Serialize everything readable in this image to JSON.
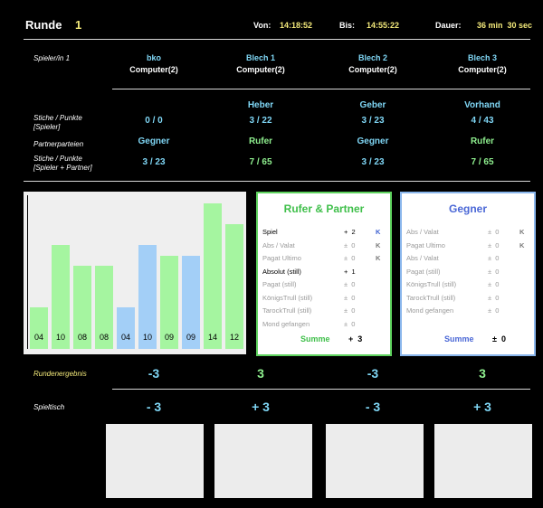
{
  "header": {
    "runde_label": "Runde",
    "runde_value": "1",
    "von_label": "Von:",
    "von_value": "14:18:52",
    "bis_label": "Bis:",
    "bis_value": "14:55:22",
    "dauer_label": "Dauer:",
    "dauer_value": "36 min  30 sec"
  },
  "labels": {
    "spieler": "Spieler/in 1",
    "stiche_spieler_1": "Stiche / Punkte",
    "stiche_spieler_2": "[Spieler]",
    "partnerparteien": "Partnerparteien",
    "stiche_partner_1": "Stiche / Punkte",
    "stiche_partner_2": "[Spieler + Partner]",
    "rundenergebnis": "Rundenergebnis",
    "spieltisch": "Spieltisch"
  },
  "players": [
    {
      "name": "bko",
      "type": "Computer(2)",
      "role": "",
      "stiche": "0 / 0",
      "partei": "Gegner",
      "partner_stiche": "3 / 23",
      "ergebnis": "-3",
      "tisch": "- 3"
    },
    {
      "name": "Blech 1",
      "type": "Computer(2)",
      "role": "Heber",
      "stiche": "3 / 22",
      "partei": "Rufer",
      "partner_stiche": "7 / 65",
      "ergebnis": "3",
      "tisch": "+ 3"
    },
    {
      "name": "Blech 2",
      "type": "Computer(2)",
      "role": "Geber",
      "stiche": "3 / 23",
      "partei": "Gegner",
      "partner_stiche": "3 / 23",
      "ergebnis": "-3",
      "tisch": "- 3"
    },
    {
      "name": "Blech 3",
      "type": "Computer(2)",
      "role": "Vorhand",
      "stiche": "4 / 43",
      "partei": "Rufer",
      "partner_stiche": "7 / 65",
      "ergebnis": "3",
      "tisch": "+ 3"
    }
  ],
  "colors": {
    "green_bar": "#a5f5a0",
    "blue_bar": "#a3cff7",
    "rufer_border": "#5fd35f",
    "gegner_border": "#8ab6ec"
  },
  "chart_data": {
    "type": "bar",
    "categories": [
      "04",
      "10",
      "08",
      "08",
      "04",
      "10",
      "09",
      "09",
      "14",
      "12"
    ],
    "values": [
      4,
      10,
      8,
      8,
      4,
      10,
      9,
      9,
      14,
      12
    ],
    "bar_colors": [
      "green",
      "green",
      "green",
      "green",
      "blue",
      "blue",
      "green",
      "blue",
      "green",
      "green"
    ],
    "ylim": [
      0,
      14.8
    ],
    "grid": false
  },
  "rufer_panel": {
    "title": "Rufer & Partner",
    "rows": [
      {
        "name": "Spiel",
        "value": "+  2",
        "k": "K",
        "active": true
      },
      {
        "name": "Abs / Valat",
        "value": "±  0",
        "k": "K",
        "active": false
      },
      {
        "name": "Pagat Ultimo",
        "value": "±  0",
        "k": "K",
        "active": false
      },
      {
        "name": "Absolut (still)",
        "value": "+  1",
        "k": "",
        "active": true
      },
      {
        "name": "Pagat (still)",
        "value": "±  0",
        "k": "",
        "active": false
      },
      {
        "name": "KönigsTrull (still)",
        "value": "±  0",
        "k": "",
        "active": false
      },
      {
        "name": "TarockTrull (still)",
        "value": "±  0",
        "k": "",
        "active": false
      },
      {
        "name": "Mond gefangen",
        "value": "±  0",
        "k": "",
        "active": false
      }
    ],
    "sum_label": "Summe",
    "sum_value": "+  3"
  },
  "gegner_panel": {
    "title": "Gegner",
    "rows": [
      {
        "name": "Abs / Valat",
        "value": "±  0",
        "k": "K",
        "active": false
      },
      {
        "name": "Pagat Ultimo",
        "value": "±  0",
        "k": "K",
        "active": false
      },
      {
        "name": "Abs / Valat",
        "value": "±  0",
        "k": "",
        "active": false
      },
      {
        "name": "Pagat (still)",
        "value": "±  0",
        "k": "",
        "active": false
      },
      {
        "name": "KönigsTrull (still)",
        "value": "±  0",
        "k": "",
        "active": false
      },
      {
        "name": "TarockTrull (still)",
        "value": "±  0",
        "k": "",
        "active": false
      },
      {
        "name": "Mond gefangen",
        "value": "±  0",
        "k": "",
        "active": false
      }
    ],
    "sum_label": "Summe",
    "sum_value": "±  0"
  }
}
